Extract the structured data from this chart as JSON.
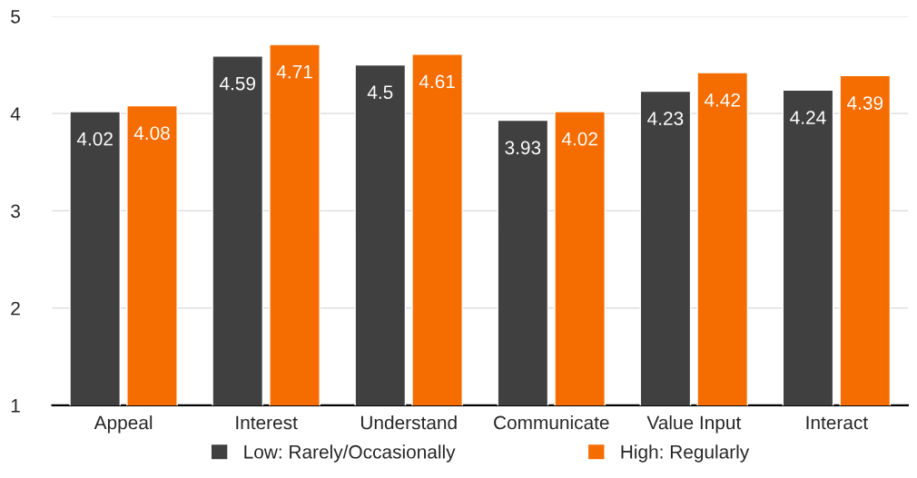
{
  "chart_data": {
    "type": "bar",
    "categories": [
      "Appeal",
      "Interest",
      "Understand",
      "Communicate",
      "Value Input",
      "Interact"
    ],
    "series": [
      {
        "name": "Low: Rarely/Occasionally",
        "color": "#404040",
        "values": [
          4.02,
          4.59,
          4.5,
          3.93,
          4.23,
          4.24
        ]
      },
      {
        "name": "High: Regularly",
        "color": "#f56c00",
        "values": [
          4.08,
          4.71,
          4.61,
          4.02,
          4.42,
          4.39
        ]
      }
    ],
    "ylim": [
      1,
      5
    ],
    "yticks": [
      1,
      2,
      3,
      4,
      5
    ],
    "grid": "y",
    "legend": "bottom",
    "data_labels": true
  }
}
